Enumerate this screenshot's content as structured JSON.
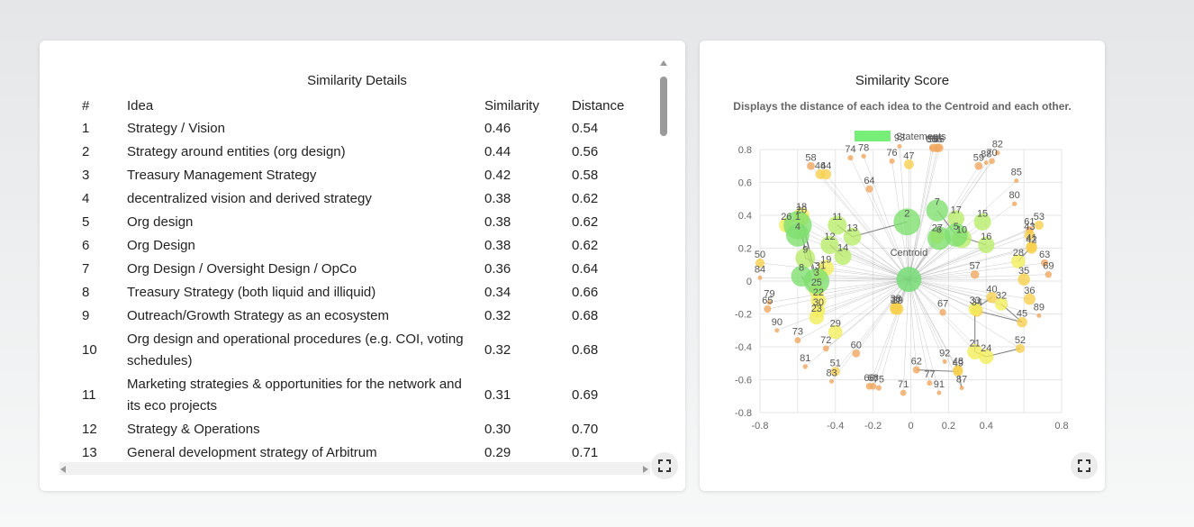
{
  "table_panel": {
    "title": "Similarity Details",
    "columns": [
      "#",
      "Idea",
      "Similarity",
      "Distance"
    ],
    "rows": [
      {
        "num": "1",
        "idea": "Strategy / Vision",
        "similarity": "0.46",
        "distance": "0.54"
      },
      {
        "num": "2",
        "idea": "Strategy around entities (org design)",
        "similarity": "0.44",
        "distance": "0.56"
      },
      {
        "num": "3",
        "idea": "Treasury Management Strategy",
        "similarity": "0.42",
        "distance": "0.58"
      },
      {
        "num": "4",
        "idea": "decentralized vision and derived strategy",
        "similarity": "0.38",
        "distance": "0.62"
      },
      {
        "num": "5",
        "idea": "Org design",
        "similarity": "0.38",
        "distance": "0.62"
      },
      {
        "num": "6",
        "idea": "Org Design",
        "similarity": "0.38",
        "distance": "0.62"
      },
      {
        "num": "7",
        "idea": "Org Design / Oversight Design / OpCo",
        "similarity": "0.36",
        "distance": "0.64"
      },
      {
        "num": "8",
        "idea": "Treasury Strategy (both liquid and illiquid)",
        "similarity": "0.34",
        "distance": "0.66"
      },
      {
        "num": "9",
        "idea": "Outreach/Growth Strategy as an ecosystem",
        "similarity": "0.32",
        "distance": "0.68"
      },
      {
        "num": "10",
        "idea": "Org design and operational procedures (e.g. COI, voting schedules)",
        "similarity": "0.32",
        "distance": "0.68"
      },
      {
        "num": "11",
        "idea": "Marketing strategies & opportunities for the network and its eco projects",
        "similarity": "0.31",
        "distance": "0.69"
      },
      {
        "num": "12",
        "idea": "Strategy & Operations",
        "similarity": "0.30",
        "distance": "0.70"
      },
      {
        "num": "13",
        "idea": "General development strategy of Arbitrum",
        "similarity": "0.29",
        "distance": "0.71"
      }
    ]
  },
  "chart_panel": {
    "title": "Similarity Score",
    "subtitle": "Displays the distance of each idea to the Centroid and each other."
  },
  "icons": {
    "expand": "expand-icon",
    "scroll_up": "arrow-up-icon",
    "scroll_left": "arrow-left-icon",
    "scroll_right": "arrow-right-icon"
  },
  "colors": {
    "legend": "#77ee77",
    "centroid": "#77dd77",
    "grid": "#e6e6e6",
    "axis_text": "#666666",
    "link": "#666666"
  },
  "chart_data": {
    "type": "scatter",
    "legend": "Statements",
    "xlim": [
      -0.8,
      0.8
    ],
    "ylim": [
      -0.8,
      0.8
    ],
    "xticks": [
      -0.8,
      -0.4,
      -0.2,
      0,
      0.2,
      0.4,
      0.8
    ],
    "yticks": [
      0.8,
      0.6,
      0.4,
      0.2,
      0,
      -0.2,
      -0.4,
      -0.6,
      -0.8
    ],
    "centroid": {
      "label": "Centroid",
      "x": -0.01,
      "y": 0.01
    },
    "points": [
      {
        "id": "1",
        "x": -0.6,
        "y": 0.34,
        "s": 0.46
      },
      {
        "id": "2",
        "x": -0.02,
        "y": 0.36,
        "s": 0.44
      },
      {
        "id": "3",
        "x": -0.5,
        "y": 0.0,
        "s": 0.42
      },
      {
        "id": "4",
        "x": -0.6,
        "y": 0.28,
        "s": 0.38
      },
      {
        "id": "5",
        "x": 0.24,
        "y": 0.28,
        "s": 0.38
      },
      {
        "id": "6",
        "x": 0.15,
        "y": 0.26,
        "s": 0.38
      },
      {
        "id": "7",
        "x": 0.14,
        "y": 0.43,
        "s": 0.36
      },
      {
        "id": "8",
        "x": -0.58,
        "y": 0.03,
        "s": 0.34
      },
      {
        "id": "9",
        "x": -0.56,
        "y": 0.14,
        "s": 0.32
      },
      {
        "id": "10",
        "x": 0.27,
        "y": 0.26,
        "s": 0.32
      },
      {
        "id": "11",
        "x": -0.39,
        "y": 0.34,
        "s": 0.31
      },
      {
        "id": "12",
        "x": -0.43,
        "y": 0.22,
        "s": 0.3
      },
      {
        "id": "13",
        "x": -0.31,
        "y": 0.27,
        "s": 0.29
      },
      {
        "id": "14",
        "x": -0.36,
        "y": 0.15,
        "s": 0.28
      },
      {
        "id": "15",
        "x": 0.38,
        "y": 0.36,
        "s": 0.28
      },
      {
        "id": "16",
        "x": 0.4,
        "y": 0.22,
        "s": 0.27
      },
      {
        "id": "17",
        "x": 0.24,
        "y": 0.38,
        "s": 0.27
      },
      {
        "id": "18",
        "x": -0.58,
        "y": 0.4,
        "s": 0.26
      },
      {
        "id": "19",
        "x": -0.45,
        "y": 0.08,
        "s": 0.26
      },
      {
        "id": "20",
        "x": -0.58,
        "y": 0.38,
        "s": 0.25
      },
      {
        "id": "21",
        "x": 0.34,
        "y": -0.43,
        "s": 0.25
      },
      {
        "id": "22",
        "x": -0.49,
        "y": -0.12,
        "s": 0.25
      },
      {
        "id": "23",
        "x": -0.5,
        "y": -0.22,
        "s": 0.24
      },
      {
        "id": "24",
        "x": 0.4,
        "y": -0.46,
        "s": 0.24
      },
      {
        "id": "25",
        "x": -0.5,
        "y": -0.06,
        "s": 0.24
      },
      {
        "id": "26",
        "x": -0.66,
        "y": 0.34,
        "s": 0.24
      },
      {
        "id": "27",
        "x": 0.14,
        "y": 0.27,
        "s": 0.23
      },
      {
        "id": "28",
        "x": 0.57,
        "y": 0.12,
        "s": 0.23
      },
      {
        "id": "29",
        "x": -0.4,
        "y": -0.31,
        "s": 0.23
      },
      {
        "id": "30",
        "x": -0.49,
        "y": -0.18,
        "s": 0.22
      },
      {
        "id": "31",
        "x": -0.48,
        "y": 0.04,
        "s": 0.22
      },
      {
        "id": "32",
        "x": 0.48,
        "y": -0.14,
        "s": 0.21
      },
      {
        "id": "33",
        "x": 0.34,
        "y": -0.17,
        "s": 0.21
      },
      {
        "id": "34",
        "x": 0.35,
        "y": -0.18,
        "s": 0.2
      },
      {
        "id": "35",
        "x": 0.6,
        "y": 0.01,
        "s": 0.2
      },
      {
        "id": "36",
        "x": 0.63,
        "y": -0.11,
        "s": 0.19
      },
      {
        "id": "37",
        "x": -0.08,
        "y": -0.17,
        "s": 0.19
      },
      {
        "id": "38",
        "x": -0.08,
        "y": -0.16,
        "s": 0.19
      },
      {
        "id": "39",
        "x": -0.07,
        "y": -0.17,
        "s": 0.19
      },
      {
        "id": "40",
        "x": 0.43,
        "y": -0.1,
        "s": 0.18
      },
      {
        "id": "41",
        "x": 0.64,
        "y": 0.21,
        "s": 0.18
      },
      {
        "id": "42",
        "x": 0.64,
        "y": 0.2,
        "s": 0.18
      },
      {
        "id": "43",
        "x": 0.63,
        "y": 0.28,
        "s": 0.17
      },
      {
        "id": "44",
        "x": -0.45,
        "y": 0.65,
        "s": 0.17
      },
      {
        "id": "45",
        "x": 0.59,
        "y": -0.25,
        "s": 0.17
      },
      {
        "id": "46",
        "x": -0.48,
        "y": 0.65,
        "s": 0.16
      },
      {
        "id": "47",
        "x": -0.01,
        "y": 0.71,
        "s": 0.16
      },
      {
        "id": "48",
        "x": 0.25,
        "y": -0.54,
        "s": 0.16
      },
      {
        "id": "49",
        "x": 0.25,
        "y": -0.55,
        "s": 0.16
      },
      {
        "id": "50",
        "x": -0.8,
        "y": 0.11,
        "s": 0.15
      },
      {
        "id": "51",
        "x": -0.4,
        "y": -0.55,
        "s": 0.15
      },
      {
        "id": "52",
        "x": 0.58,
        "y": -0.41,
        "s": 0.15
      },
      {
        "id": "53",
        "x": 0.68,
        "y": 0.34,
        "s": 0.15
      },
      {
        "id": "54",
        "x": 0.12,
        "y": 0.81,
        "s": 0.14
      },
      {
        "id": "55",
        "x": 0.14,
        "y": 0.81,
        "s": 0.14
      },
      {
        "id": "56",
        "x": 0.15,
        "y": 0.81,
        "s": 0.14
      },
      {
        "id": "57",
        "x": 0.34,
        "y": 0.04,
        "s": 0.14
      },
      {
        "id": "58",
        "x": -0.53,
        "y": 0.7,
        "s": 0.13
      },
      {
        "id": "59",
        "x": 0.36,
        "y": 0.7,
        "s": 0.13
      },
      {
        "id": "60",
        "x": -0.29,
        "y": -0.44,
        "s": 0.13
      },
      {
        "id": "61",
        "x": 0.63,
        "y": 0.31,
        "s": 0.13
      },
      {
        "id": "62",
        "x": 0.03,
        "y": -0.54,
        "s": 0.12
      },
      {
        "id": "63",
        "x": 0.71,
        "y": 0.11,
        "s": 0.12
      },
      {
        "id": "64",
        "x": -0.22,
        "y": 0.56,
        "s": 0.12
      },
      {
        "id": "65",
        "x": -0.76,
        "y": -0.17,
        "s": 0.12
      },
      {
        "id": "66",
        "x": -0.22,
        "y": -0.64,
        "s": 0.11
      },
      {
        "id": "67",
        "x": 0.17,
        "y": -0.19,
        "s": 0.11
      },
      {
        "id": "68",
        "x": -0.2,
        "y": -0.64,
        "s": 0.11
      },
      {
        "id": "69",
        "x": 0.73,
        "y": 0.04,
        "s": 0.11
      },
      {
        "id": "70",
        "x": 0.43,
        "y": 0.73,
        "s": 0.1
      },
      {
        "id": "71",
        "x": -0.04,
        "y": -0.68,
        "s": 0.1
      },
      {
        "id": "72",
        "x": -0.45,
        "y": -0.41,
        "s": 0.1
      },
      {
        "id": "73",
        "x": -0.6,
        "y": -0.36,
        "s": 0.1
      },
      {
        "id": "74",
        "x": -0.32,
        "y": 0.75,
        "s": 0.09
      },
      {
        "id": "75",
        "x": -0.17,
        "y": -0.65,
        "s": 0.09
      },
      {
        "id": "76",
        "x": -0.1,
        "y": 0.73,
        "s": 0.09
      },
      {
        "id": "77",
        "x": 0.1,
        "y": -0.62,
        "s": 0.09
      },
      {
        "id": "78",
        "x": -0.25,
        "y": 0.76,
        "s": 0.08
      },
      {
        "id": "79",
        "x": -0.75,
        "y": -0.13,
        "s": 0.08
      },
      {
        "id": "80",
        "x": 0.55,
        "y": 0.47,
        "s": 0.08
      },
      {
        "id": "81",
        "x": -0.56,
        "y": -0.52,
        "s": 0.08
      },
      {
        "id": "82",
        "x": 0.46,
        "y": 0.78,
        "s": 0.08
      },
      {
        "id": "83",
        "x": -0.42,
        "y": -0.61,
        "s": 0.07
      },
      {
        "id": "84",
        "x": -0.8,
        "y": 0.02,
        "s": 0.07
      },
      {
        "id": "85",
        "x": 0.56,
        "y": 0.61,
        "s": 0.07
      },
      {
        "id": "86",
        "x": 0.11,
        "y": 0.81,
        "s": 0.07
      },
      {
        "id": "87",
        "x": 0.27,
        "y": -0.65,
        "s": 0.06
      },
      {
        "id": "88",
        "x": 0.4,
        "y": 0.72,
        "s": 0.06
      },
      {
        "id": "89",
        "x": 0.68,
        "y": -0.21,
        "s": 0.06
      },
      {
        "id": "90",
        "x": -0.71,
        "y": -0.3,
        "s": 0.06
      },
      {
        "id": "91",
        "x": 0.15,
        "y": -0.68,
        "s": 0.05
      },
      {
        "id": "92",
        "x": 0.18,
        "y": -0.49,
        "s": 0.05
      },
      {
        "id": "93",
        "x": -0.06,
        "y": 0.82,
        "s": 0.05
      }
    ],
    "links": [
      [
        3,
        20
      ],
      [
        3,
        18
      ],
      [
        9,
        20
      ],
      [
        3,
        1
      ],
      [
        5,
        10
      ],
      [
        6,
        27
      ],
      [
        7,
        5
      ],
      [
        24,
        21
      ],
      [
        24,
        52
      ],
      [
        33,
        40
      ],
      [
        22,
        30
      ],
      [
        34,
        45
      ],
      [
        12,
        14
      ],
      [
        11,
        13
      ],
      [
        16,
        5
      ],
      [
        8,
        22
      ],
      [
        25,
        31
      ],
      [
        19,
        9
      ],
      [
        49,
        62
      ],
      [
        48,
        87
      ],
      [
        21,
        33
      ],
      [
        32,
        45
      ],
      [
        28,
        41
      ],
      [
        18,
        26
      ],
      [
        13,
        2
      ],
      [
        23,
        30
      ]
    ]
  }
}
